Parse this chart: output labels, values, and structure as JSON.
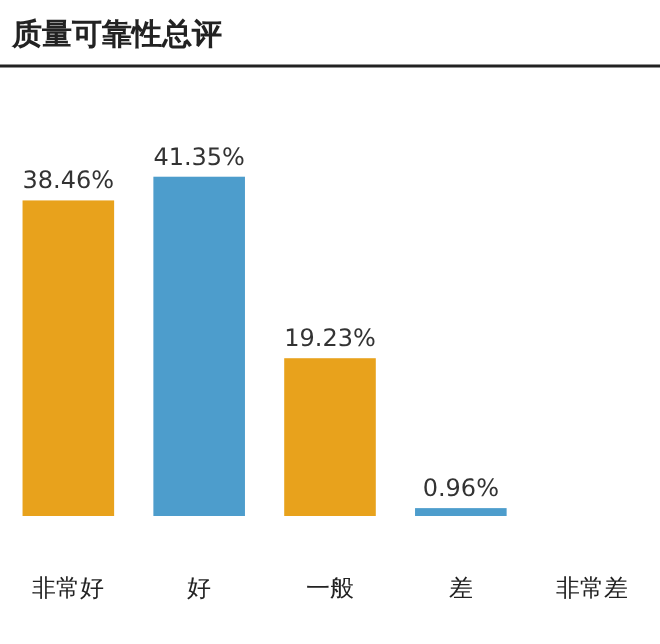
{
  "chart_data": {
    "type": "bar",
    "title": "质量可靠性总评",
    "categories": [
      "非常好",
      "好",
      "一般",
      "差",
      "非常差"
    ],
    "values": [
      38.46,
      41.35,
      19.23,
      0.96,
      null
    ],
    "colors": [
      "#e8a21c",
      "#4d9dcc",
      "#e8a21c",
      "#4d9dcc",
      null
    ],
    "value_labels": [
      "38.46%",
      "41.35%",
      "19.23%",
      "0.96%",
      null
    ],
    "relative": false
  }
}
